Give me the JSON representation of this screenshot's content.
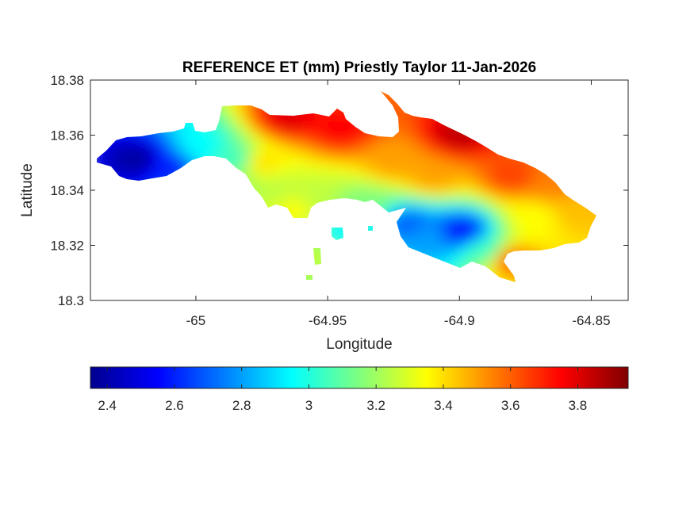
{
  "chart_data": {
    "type": "heatmap",
    "title": "REFERENCE ET (mm) Priestly Taylor 11-Jan-2026",
    "xlabel": "Longitude",
    "ylabel": "Latitude",
    "xlim": [
      -65.04,
      -64.836
    ],
    "ylim": [
      18.3,
      18.38
    ],
    "xticks": [
      -65,
      -64.95,
      -64.9,
      -64.85
    ],
    "xtick_labels": [
      "-65",
      "-64.95",
      "-64.9",
      "-64.85"
    ],
    "yticks": [
      18.3,
      18.32,
      18.34,
      18.36,
      18.38
    ],
    "ytick_labels": [
      "18.3",
      "18.32",
      "18.34",
      "18.36",
      "18.38"
    ],
    "colormap": "jet",
    "clim": [
      2.35,
      3.95
    ],
    "colorbar": {
      "placement": "bottom",
      "ticks": [
        2.4,
        2.6,
        2.8,
        3.0,
        3.2,
        3.4,
        3.6,
        3.8
      ],
      "tick_labels": [
        "2.4",
        "2.6",
        "2.8",
        "3",
        "3.2",
        "3.4",
        "3.6",
        "3.8"
      ]
    },
    "grid": false,
    "field_samples": [
      {
        "x": -65.022,
        "y": 18.351,
        "v": 2.4
      },
      {
        "x": -65.01,
        "y": 18.348,
        "v": 2.6
      },
      {
        "x": -64.998,
        "y": 18.356,
        "v": 2.95
      },
      {
        "x": -64.985,
        "y": 18.351,
        "v": 3.05
      },
      {
        "x": -64.97,
        "y": 18.34,
        "v": 3.25
      },
      {
        "x": -64.955,
        "y": 18.337,
        "v": 3.25
      },
      {
        "x": -64.965,
        "y": 18.366,
        "v": 3.8
      },
      {
        "x": -64.945,
        "y": 18.362,
        "v": 3.75
      },
      {
        "x": -64.925,
        "y": 18.35,
        "v": 3.5
      },
      {
        "x": -64.9,
        "y": 18.36,
        "v": 3.85
      },
      {
        "x": -64.91,
        "y": 18.345,
        "v": 3.5
      },
      {
        "x": -64.88,
        "y": 18.345,
        "v": 3.65
      },
      {
        "x": -64.865,
        "y": 18.342,
        "v": 3.55
      },
      {
        "x": -64.872,
        "y": 18.33,
        "v": 3.35
      },
      {
        "x": -64.855,
        "y": 18.332,
        "v": 3.45
      },
      {
        "x": -64.899,
        "y": 18.325,
        "v": 2.55
      },
      {
        "x": -64.912,
        "y": 18.322,
        "v": 2.8
      },
      {
        "x": -64.92,
        "y": 18.328,
        "v": 2.7
      },
      {
        "x": -64.89,
        "y": 18.318,
        "v": 3.05
      },
      {
        "x": -64.881,
        "y": 18.315,
        "v": 3.6
      },
      {
        "x": -64.935,
        "y": 18.335,
        "v": 3.15
      },
      {
        "x": -64.945,
        "y": 18.325,
        "v": 2.95
      },
      {
        "x": -64.955,
        "y": 18.317,
        "v": 3.25
      },
      {
        "x": -64.962,
        "y": 18.333,
        "v": 3.35
      },
      {
        "x": -64.985,
        "y": 18.342,
        "v": 3.2
      },
      {
        "x": -64.975,
        "y": 18.35,
        "v": 3.4
      }
    ]
  }
}
